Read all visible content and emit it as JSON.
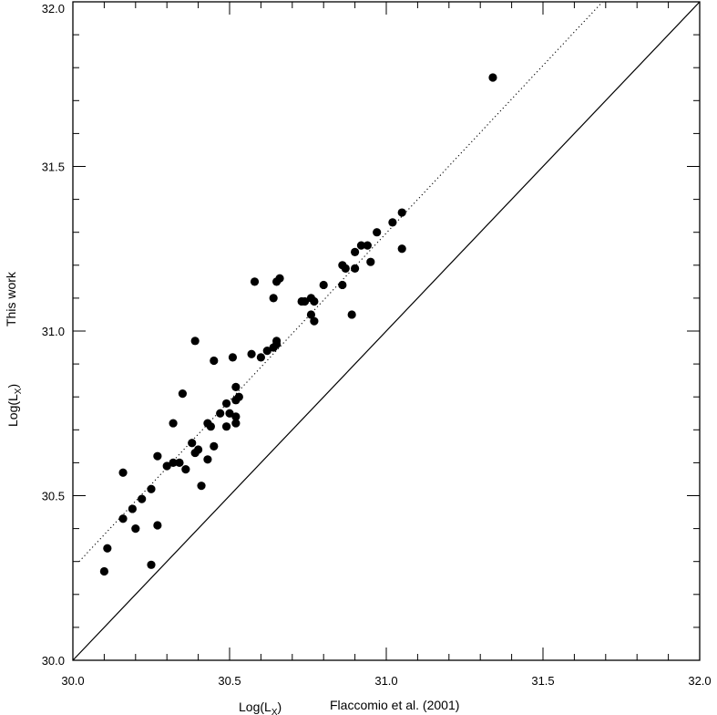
{
  "chart_data": {
    "type": "scatter",
    "xlabel_part1": "Log(L",
    "xlabel_sub": "X",
    "xlabel_part2": ")",
    "xlabel_source": "Flaccomio et al. (2001)",
    "ylabel_part1": "Log(L",
    "ylabel_sub": "X",
    "ylabel_part2": ")",
    "ylabel_source": "This work",
    "xlim": [
      30.0,
      32.0
    ],
    "ylim": [
      30.0,
      32.0
    ],
    "xticks": [
      {
        "value": 30.0,
        "label": "30.0"
      },
      {
        "value": 30.5,
        "label": "30.5"
      },
      {
        "value": 31.0,
        "label": "31.0"
      },
      {
        "value": 31.5,
        "label": "31.5"
      },
      {
        "value": 32.0,
        "label": "32.0"
      }
    ],
    "yticks": [
      {
        "value": 30.0,
        "label": "30.0"
      },
      {
        "value": 30.5,
        "label": "30.5"
      },
      {
        "value": 31.0,
        "label": "31.0"
      },
      {
        "value": 31.5,
        "label": "31.5"
      },
      {
        "value": 32.0,
        "label": "32.0"
      }
    ],
    "minor_step": 0.1,
    "lines": [
      {
        "style": "solid",
        "x": [
          30.0,
          32.0
        ],
        "y": [
          30.0,
          32.0
        ]
      },
      {
        "style": "dotted",
        "x": [
          30.02,
          31.69
        ],
        "y": [
          30.3,
          32.0
        ]
      }
    ],
    "points": [
      [
        30.1,
        30.27
      ],
      [
        30.11,
        30.34
      ],
      [
        30.16,
        30.57
      ],
      [
        30.16,
        30.43
      ],
      [
        30.19,
        30.46
      ],
      [
        30.2,
        30.4
      ],
      [
        30.22,
        30.49
      ],
      [
        30.25,
        30.29
      ],
      [
        30.25,
        30.52
      ],
      [
        30.27,
        30.62
      ],
      [
        30.27,
        30.41
      ],
      [
        30.3,
        30.59
      ],
      [
        30.32,
        30.6
      ],
      [
        30.32,
        30.72
      ],
      [
        30.34,
        30.6
      ],
      [
        30.35,
        30.81
      ],
      [
        30.36,
        30.58
      ],
      [
        30.38,
        30.66
      ],
      [
        30.39,
        30.63
      ],
      [
        30.39,
        30.97
      ],
      [
        30.4,
        30.64
      ],
      [
        30.41,
        30.53
      ],
      [
        30.43,
        30.61
      ],
      [
        30.43,
        30.72
      ],
      [
        30.44,
        30.71
      ],
      [
        30.45,
        30.65
      ],
      [
        30.45,
        30.91
      ],
      [
        30.47,
        30.75
      ],
      [
        30.49,
        30.71
      ],
      [
        30.49,
        30.78
      ],
      [
        30.5,
        30.75
      ],
      [
        30.51,
        30.92
      ],
      [
        30.52,
        30.79
      ],
      [
        30.52,
        30.74
      ],
      [
        30.52,
        30.83
      ],
      [
        30.53,
        30.8
      ],
      [
        30.52,
        30.72
      ],
      [
        30.57,
        30.93
      ],
      [
        30.58,
        31.15
      ],
      [
        30.6,
        30.92
      ],
      [
        30.62,
        30.94
      ],
      [
        30.64,
        31.1
      ],
      [
        30.64,
        30.95
      ],
      [
        30.65,
        30.97
      ],
      [
        30.65,
        30.96
      ],
      [
        30.65,
        31.15
      ],
      [
        30.66,
        31.16
      ],
      [
        30.73,
        31.09
      ],
      [
        30.74,
        31.09
      ],
      [
        30.76,
        31.1
      ],
      [
        30.77,
        31.09
      ],
      [
        30.76,
        31.05
      ],
      [
        30.77,
        31.03
      ],
      [
        30.8,
        31.14
      ],
      [
        30.86,
        31.14
      ],
      [
        30.86,
        31.2
      ],
      [
        30.87,
        31.19
      ],
      [
        30.89,
        31.05
      ],
      [
        30.9,
        31.24
      ],
      [
        30.9,
        31.19
      ],
      [
        30.92,
        31.26
      ],
      [
        30.94,
        31.26
      ],
      [
        30.95,
        31.21
      ],
      [
        30.97,
        31.3
      ],
      [
        31.02,
        31.33
      ],
      [
        31.05,
        31.36
      ],
      [
        31.05,
        31.25
      ],
      [
        31.34,
        31.77
      ]
    ]
  }
}
